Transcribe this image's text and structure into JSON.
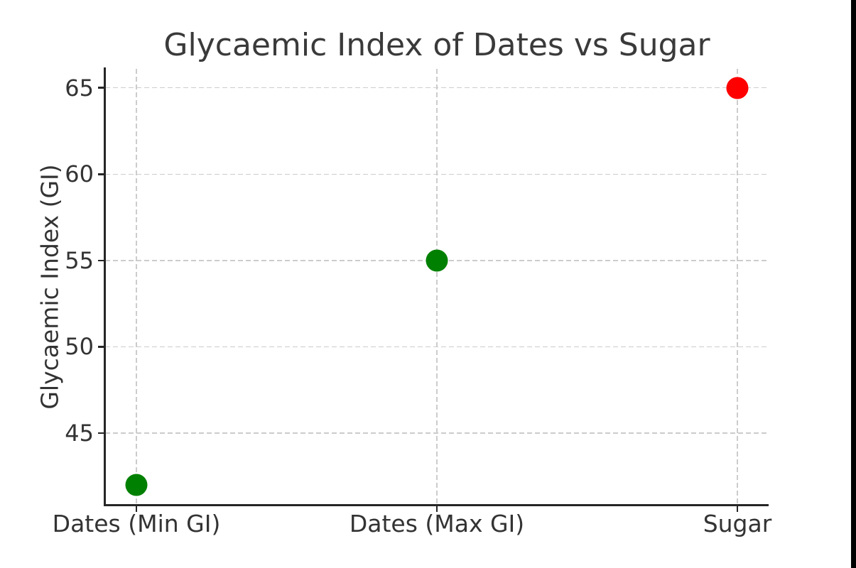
{
  "figure": {
    "background": "#ffffff"
  },
  "chart_data": {
    "type": "scatter",
    "title": "Glycaemic Index of Dates vs Sugar",
    "xlabel": "",
    "ylabel": "Glycaemic Index (GI)",
    "categories": [
      "Dates (Min GI)",
      "Dates (Max GI)",
      "Sugar"
    ],
    "values": [
      42,
      55,
      65
    ],
    "point_colors": [
      "#008000",
      "#008000",
      "#ff0000"
    ],
    "yticks": [
      45,
      50,
      55,
      60,
      65
    ],
    "ylim": [
      40.8,
      66.1
    ],
    "grid": true,
    "grid_style": "dashed",
    "legend_position": "none"
  },
  "colors": {
    "text": "#333333",
    "spine": "#262626",
    "grid": "#cccccc",
    "green_point": "#008000",
    "red_point": "#ff0000",
    "edge_strip": "#000000"
  }
}
